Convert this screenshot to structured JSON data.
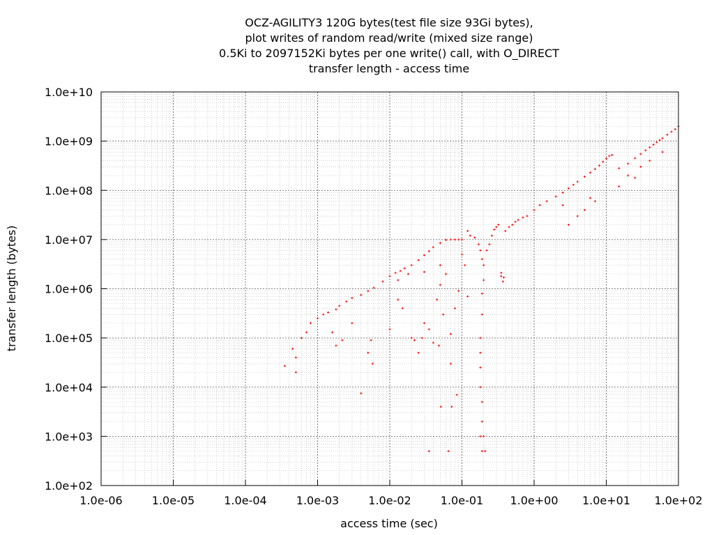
{
  "chart_data": {
    "type": "scatter",
    "title_lines": [
      "OCZ-AGILITY3 120G bytes(test file size 93Gi bytes),",
      "plot writes of random read/write (mixed size range)",
      "0.5Ki to 2097152Ki bytes per one write() call, with O_DIRECT",
      "transfer length - access time"
    ],
    "xlabel": "access time (sec)",
    "ylabel": "transfer length (bytes)",
    "xscale": "log",
    "yscale": "log",
    "xlim": [
      1e-06,
      100
    ],
    "ylim": [
      100,
      10000000000.0
    ],
    "xticks": [
      {
        "value": 1e-06,
        "label": "1.0e-06"
      },
      {
        "value": 1e-05,
        "label": "1.0e-05"
      },
      {
        "value": 0.0001,
        "label": "1.0e-04"
      },
      {
        "value": 0.001,
        "label": "1.0e-03"
      },
      {
        "value": 0.01,
        "label": "1.0e-02"
      },
      {
        "value": 0.1,
        "label": "1.0e-01"
      },
      {
        "value": 1,
        "label": "1.0e+00"
      },
      {
        "value": 10,
        "label": "1.0e+01"
      },
      {
        "value": 100,
        "label": "1.0e+02"
      }
    ],
    "yticks": [
      {
        "value": 100,
        "label": "1.0e+02"
      },
      {
        "value": 1000,
        "label": "1.0e+03"
      },
      {
        "value": 10000,
        "label": "1.0e+04"
      },
      {
        "value": 100000,
        "label": "1.0e+05"
      },
      {
        "value": 1000000,
        "label": "1.0e+06"
      },
      {
        "value": 10000000,
        "label": "1.0e+07"
      },
      {
        "value": 100000000,
        "label": "1.0e+08"
      },
      {
        "value": 1000000000,
        "label": "1.0e+09"
      },
      {
        "value": 10000000000,
        "label": "1.0e+10"
      }
    ],
    "grid": true,
    "marker_color": "#ff0000",
    "series": [
      {
        "points": [
          [
            0.00035,
            27000
          ],
          [
            0.00045,
            60000
          ],
          [
            0.0005,
            40000
          ],
          [
            0.0005,
            20000
          ],
          [
            0.0006,
            100000
          ],
          [
            0.0007,
            130000
          ],
          [
            0.0008,
            200000
          ],
          [
            0.001,
            250000
          ],
          [
            0.0012,
            300000
          ],
          [
            0.0014,
            330000
          ],
          [
            0.0018,
            380000
          ],
          [
            0.002,
            450000
          ],
          [
            0.0025,
            550000
          ],
          [
            0.003,
            650000
          ],
          [
            0.004,
            750000
          ],
          [
            0.005,
            900000
          ],
          [
            0.006,
            1050000
          ],
          [
            0.008,
            1400000
          ],
          [
            0.01,
            1800000
          ],
          [
            0.012,
            2100000
          ],
          [
            0.014,
            2300000
          ],
          [
            0.016,
            2600000
          ],
          [
            0.02,
            3000000
          ],
          [
            0.025,
            3800000
          ],
          [
            0.03,
            4800000
          ],
          [
            0.035,
            5800000
          ],
          [
            0.04,
            7000000
          ],
          [
            0.05,
            8500000
          ],
          [
            0.06,
            9800000
          ],
          [
            0.07,
            10000000
          ],
          [
            0.08,
            10000000
          ],
          [
            0.09,
            10000000
          ],
          [
            0.1,
            10000000
          ],
          [
            0.0016,
            130000
          ],
          [
            0.0018,
            70000
          ],
          [
            0.0022,
            90000
          ],
          [
            0.003,
            200000
          ],
          [
            0.004,
            7500
          ],
          [
            0.005,
            50000
          ],
          [
            0.0055,
            90000
          ],
          [
            0.0058,
            30000
          ],
          [
            0.01,
            150000
          ],
          [
            0.013,
            600000
          ],
          [
            0.015,
            400000
          ],
          [
            0.02,
            100000
          ],
          [
            0.022,
            90000
          ],
          [
            0.025,
            50000
          ],
          [
            0.028,
            100000
          ],
          [
            0.03,
            200000
          ],
          [
            0.035,
            150000
          ],
          [
            0.04,
            80000
          ],
          [
            0.045,
            600000
          ],
          [
            0.05,
            1200000
          ],
          [
            0.05,
            3000000
          ],
          [
            0.055,
            300000
          ],
          [
            0.06,
            2000000
          ],
          [
            0.07,
            120000
          ],
          [
            0.07,
            30000
          ],
          [
            0.08,
            400000
          ],
          [
            0.09,
            900000
          ],
          [
            0.1,
            5000000
          ],
          [
            0.11,
            3000000
          ],
          [
            0.12,
            700000
          ],
          [
            0.013,
            1500000
          ],
          [
            0.018,
            2000000
          ],
          [
            0.03,
            2200000
          ],
          [
            0.048,
            70000
          ],
          [
            0.051,
            4000
          ],
          [
            0.035,
            500
          ],
          [
            0.065,
            500
          ],
          [
            0.072,
            4000
          ],
          [
            0.085,
            7000
          ],
          [
            0.12,
            15000000
          ],
          [
            0.13,
            12000000
          ],
          [
            0.15,
            11000000
          ],
          [
            0.17,
            8000000
          ],
          [
            0.18,
            6000000
          ],
          [
            0.19,
            4000000
          ],
          [
            0.2,
            3000000
          ],
          [
            0.2,
            1500000
          ],
          [
            0.19,
            800000
          ],
          [
            0.19,
            300000
          ],
          [
            0.18,
            100000
          ],
          [
            0.18,
            50000
          ],
          [
            0.18,
            25000
          ],
          [
            0.18,
            10000
          ],
          [
            0.19,
            5000
          ],
          [
            0.19,
            2000
          ],
          [
            0.18,
            1000
          ],
          [
            0.2,
            1000
          ],
          [
            0.19,
            500
          ],
          [
            0.21,
            500
          ],
          [
            0.22,
            6000000
          ],
          [
            0.24,
            8000000
          ],
          [
            0.26,
            12000000
          ],
          [
            0.28,
            16000000
          ],
          [
            0.3,
            18000000
          ],
          [
            0.32,
            20000000
          ],
          [
            0.35,
            1800000
          ],
          [
            0.35,
            2100000
          ],
          [
            0.37,
            1400000
          ],
          [
            0.38,
            1700000
          ],
          [
            0.4,
            15000000
          ],
          [
            0.45,
            18000000
          ],
          [
            0.5,
            20000000
          ],
          [
            0.55,
            23000000
          ],
          [
            0.6,
            25000000
          ],
          [
            0.7,
            28000000
          ],
          [
            0.8,
            30000000
          ],
          [
            1,
            40000000
          ],
          [
            1.2,
            50000000
          ],
          [
            1.5,
            60000000
          ],
          [
            2,
            75000000
          ],
          [
            2.5,
            90000000
          ],
          [
            3,
            110000000
          ],
          [
            3.5,
            130000000
          ],
          [
            4,
            150000000
          ],
          [
            5,
            190000000
          ],
          [
            6,
            230000000
          ],
          [
            7,
            270000000
          ],
          [
            8,
            320000000
          ],
          [
            9,
            380000000
          ],
          [
            10,
            440000000
          ],
          [
            11,
            500000000
          ],
          [
            12,
            520000000
          ],
          [
            2.5,
            50000000
          ],
          [
            4,
            30000000
          ],
          [
            5,
            40000000
          ],
          [
            6,
            70000000
          ],
          [
            3,
            20000000
          ],
          [
            7,
            60000000
          ],
          [
            15,
            280000000
          ],
          [
            20,
            350000000
          ],
          [
            25,
            450000000
          ],
          [
            30,
            550000000
          ],
          [
            35,
            650000000
          ],
          [
            40,
            750000000
          ],
          [
            45,
            850000000
          ],
          [
            50,
            950000000
          ],
          [
            55,
            1050000000
          ],
          [
            60,
            1150000000
          ],
          [
            70,
            1350000000
          ],
          [
            80,
            1550000000
          ],
          [
            90,
            1750000000
          ],
          [
            100,
            2000000000
          ],
          [
            20,
            200000000
          ],
          [
            30,
            300000000
          ],
          [
            40,
            400000000
          ],
          [
            15,
            120000000
          ],
          [
            25,
            180000000
          ],
          [
            60,
            600000000
          ]
        ]
      }
    ]
  }
}
